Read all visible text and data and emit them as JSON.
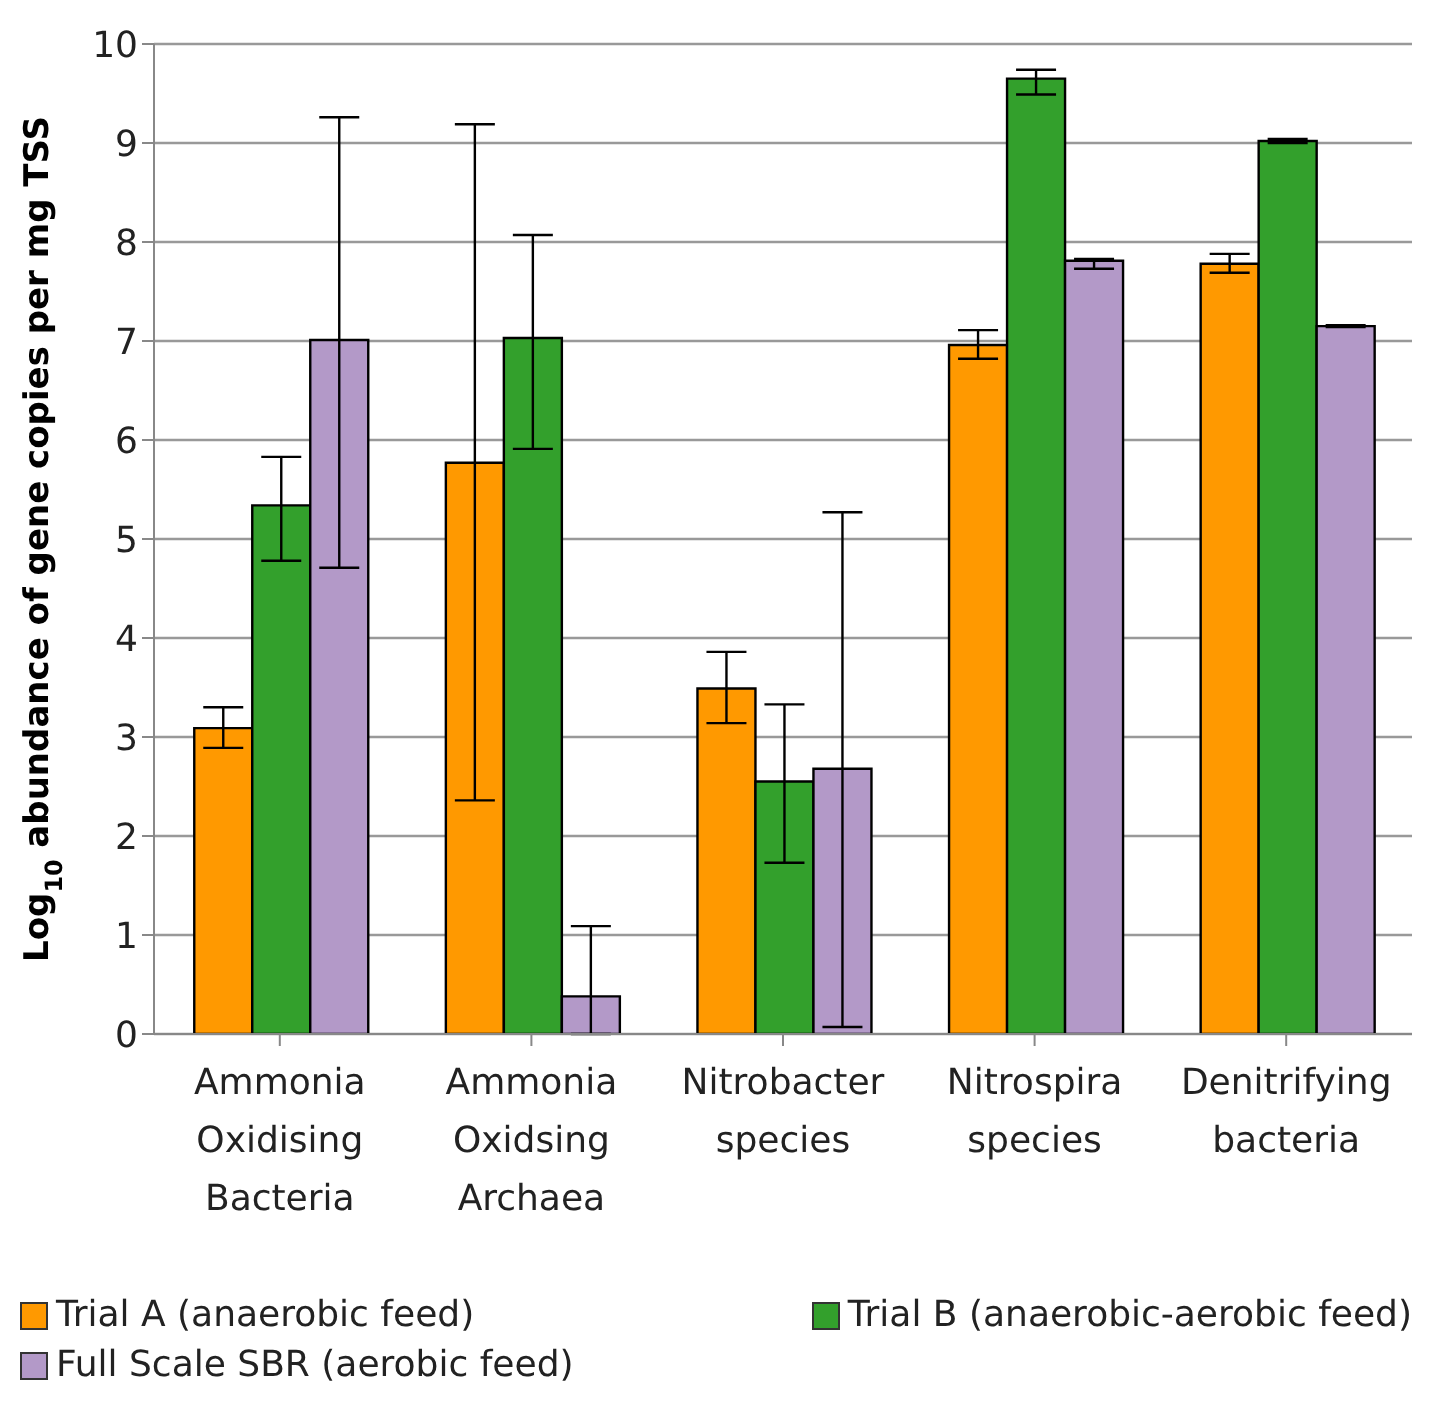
{
  "chart_data": {
    "type": "bar",
    "ylabel": "Log$_{10}$ abundance of gene copies per mg TSS",
    "categories": [
      "Ammonia Oxidising Bacteria",
      "Ammonia Oxidsing Archaea",
      "Nitrobacter species",
      "Nitrospira species",
      "Denitrifying bacteria"
    ],
    "series": [
      {
        "name": "Trial A (anaerobic feed)",
        "color": "#ff9900",
        "values": [
          3.09,
          5.77,
          3.49,
          6.96,
          7.78
        ],
        "errors": [
          [
            2.89,
            3.3
          ],
          [
            2.36,
            9.19
          ],
          [
            3.14,
            3.86
          ],
          [
            6.82,
            7.11
          ],
          [
            7.69,
            7.88
          ]
        ]
      },
      {
        "name": "Trial B (anaerobic-aerobic feed)",
        "color": "#33a02c",
        "values": [
          5.34,
          7.03,
          2.55,
          9.65,
          9.02
        ],
        "errors": [
          [
            4.78,
            5.83
          ],
          [
            5.91,
            8.07
          ],
          [
            1.73,
            3.33
          ],
          [
            9.49,
            9.74
          ],
          [
            9.0,
            9.04
          ]
        ]
      },
      {
        "name": "Full Scale SBR (aerobic feed)",
        "color": "#b399c8",
        "values": [
          7.01,
          0.38,
          2.68,
          7.81,
          7.15
        ],
        "errors": [
          [
            4.71,
            9.26
          ],
          [
            0,
            1.09
          ],
          [
            0.07,
            5.27
          ],
          [
            7.73,
            7.83
          ],
          [
            7.14,
            7.16
          ]
        ]
      }
    ],
    "ylim": [
      0,
      10
    ],
    "yticks": [
      0,
      1,
      2,
      3,
      4,
      5,
      6,
      7,
      8,
      9,
      10
    ],
    "grid": "y",
    "legend": "bottom"
  }
}
